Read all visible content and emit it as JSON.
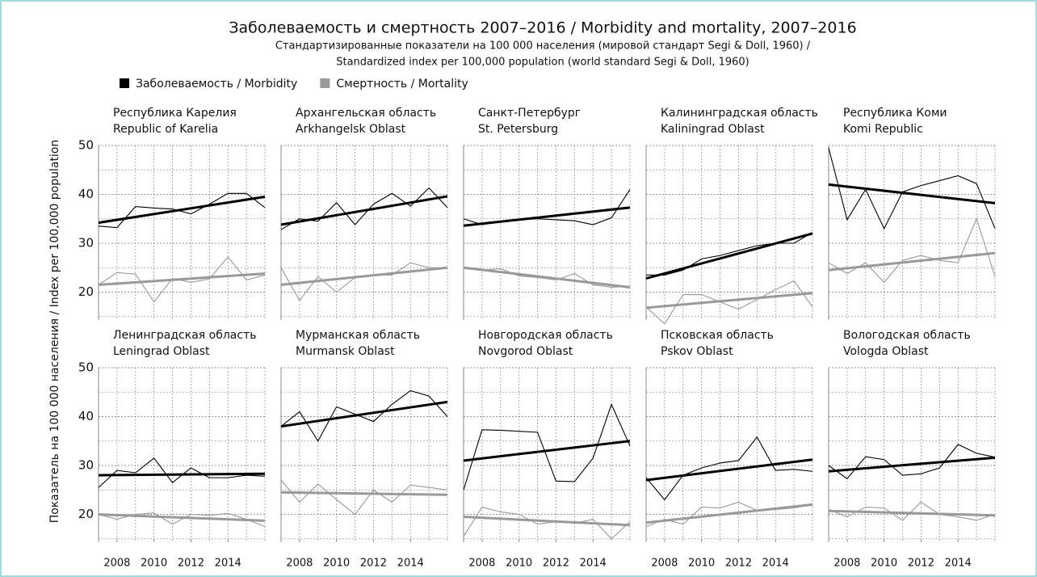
{
  "chart_data": {
    "type": "line",
    "title": "Заболеваемость и смертность 2007–2016 / Morbidity and mortality, 2007–2016",
    "subtitle": [
      "Стандартизированные показатели на 100 000 населения (мировой стандарт Segi & Doll, 1960) /",
      "Standardized index per 100,000 population (world standard Segi & Doll, 1960)"
    ],
    "ylabel": "Показатель на 100 000 населения / Index per 100,000 population",
    "series": [
      {
        "name": "Заболеваемость / Morbidity",
        "color": "#000000"
      },
      {
        "name": "Смертность / Mortality",
        "color": "#999999"
      }
    ],
    "x": [
      2007,
      2008,
      2009,
      2010,
      2011,
      2012,
      2013,
      2014,
      2015,
      2016
    ],
    "xlim": [
      2007,
      2016
    ],
    "xticks": [
      2008,
      2010,
      2012,
      2014
    ],
    "ylim": [
      15,
      50
    ],
    "yticks": [
      20,
      30,
      40,
      50
    ],
    "grid": true,
    "panels": [
      {
        "title": [
          "Республика Карелия",
          "Republic of Karelia"
        ],
        "series": [
          {
            "values": [
              33.5,
              33.2,
              37.5,
              37.2,
              37,
              36,
              38,
              40.2,
              40.2,
              37.3
            ],
            "trend": [
              34.2,
              39.5
            ]
          },
          {
            "values": [
              21.5,
              24,
              23.7,
              18,
              22.8,
              22,
              22.7,
              27.2,
              22.5,
              23.5
            ],
            "trend": [
              21.5,
              23.8
            ]
          }
        ]
      },
      {
        "title": [
          "Архангельская область",
          "Arkhangelsk Oblast"
        ],
        "series": [
          {
            "values": [
              32.8,
              35,
              34.5,
              38.3,
              33.8,
              38,
              40.2,
              37.6,
              41.3,
              37.3
            ],
            "trend": [
              33.8,
              39.6
            ]
          },
          {
            "values": [
              25,
              18.3,
              23.2,
              20,
              23,
              23.5,
              23.5,
              26,
              25,
              25
            ],
            "trend": [
              21.5,
              25
            ]
          }
        ]
      },
      {
        "title": [
          "Санкт-Петербург",
          "St. Petersburg"
        ],
        "series": [
          {
            "values": [
              35,
              33.8,
              34.5,
              34.8,
              35,
              34.8,
              34.6,
              33.8,
              35.2,
              41
            ],
            "trend": [
              33.6,
              37.3
            ]
          },
          {
            "values": [
              25,
              24.5,
              24.8,
              23.3,
              23,
              22.5,
              23.8,
              21.5,
              21,
              21.2
            ],
            "trend": [
              25,
              21
            ]
          }
        ]
      },
      {
        "title": [
          "Калининградская область",
          "Kaliningrad Oblast"
        ],
        "series": [
          {
            "values": [
              23.5,
              23.5,
              24.5,
              26.8,
              27.5,
              28.5,
              29.5,
              30,
              30,
              32.2
            ],
            "trend": [
              22.8,
              32
            ]
          },
          {
            "values": [
              17,
              13.5,
              19.5,
              19.5,
              18,
              16.5,
              18.5,
              20.5,
              22.3,
              17
            ],
            "trend": [
              16.8,
              19.8
            ]
          }
        ]
      },
      {
        "title": [
          "Республика Коми",
          "Komi Republic"
        ],
        "series": [
          {
            "values": [
              49.5,
              34.8,
              41,
              33,
              40.5,
              41.8,
              42.8,
              43.8,
              42.2,
              33
            ],
            "trend": [
              42,
              38.2
            ]
          },
          {
            "values": [
              26,
              23.8,
              26,
              22,
              26.5,
              27.5,
              26.5,
              26,
              35,
              23.2
            ],
            "trend": [
              24.5,
              28
            ]
          }
        ]
      },
      {
        "title": [
          "Ленинградская область",
          "Leningrad Oblast"
        ],
        "series": [
          {
            "values": [
              25.5,
              29,
              28.5,
              31.5,
              26.5,
              29.5,
              27.5,
              27.5,
              28,
              27.8
            ],
            "trend": [
              28,
              28.3
            ]
          },
          {
            "values": [
              20,
              19,
              20,
              20.3,
              18,
              20,
              19.8,
              20.2,
              19,
              17.5
            ],
            "trend": [
              20,
              18.7
            ]
          }
        ]
      },
      {
        "title": [
          "Мурманская область",
          "Murmansk Oblast"
        ],
        "series": [
          {
            "values": [
              38,
              41,
              35,
              42,
              40.5,
              39,
              42.5,
              45.3,
              44.2,
              40
            ],
            "trend": [
              38,
              43
            ]
          },
          {
            "values": [
              27,
              22.5,
              26.2,
              23,
              20,
              25,
              22.5,
              26,
              25.5,
              25
            ],
            "trend": [
              24.5,
              24
            ]
          }
        ]
      },
      {
        "title": [
          "Новгородская область",
          "Novgorod Oblast"
        ],
        "series": [
          {
            "values": [
              25,
              37.3,
              37.2,
              37,
              36.8,
              26.8,
              26.7,
              31.5,
              42.5,
              34
            ],
            "trend": [
              31,
              35
            ]
          },
          {
            "values": [
              15.5,
              21.5,
              20.5,
              20,
              18,
              18.5,
              18.2,
              19,
              15,
              18.5
            ],
            "trend": [
              19.5,
              17.8
            ]
          }
        ]
      },
      {
        "title": [
          "Псковская область",
          "Pskov Oblast"
        ],
        "series": [
          {
            "values": [
              27.5,
              23,
              28,
              29.5,
              30.5,
              31,
              35.8,
              29,
              29.2,
              28.8
            ],
            "trend": [
              27,
              31.2
            ]
          },
          {
            "values": [
              17.5,
              19,
              18,
              21.5,
              21.3,
              22.5,
              20.8,
              21,
              21.3,
              22
            ],
            "trend": [
              18.3,
              22
            ]
          }
        ]
      },
      {
        "title": [
          "Вологодская область",
          "Vologda Oblast"
        ],
        "series": [
          {
            "values": [
              30,
              27.3,
              31.8,
              31.2,
              28,
              28.3,
              29.5,
              34.3,
              32.5,
              31.7
            ],
            "trend": [
              28.8,
              31.6
            ]
          },
          {
            "values": [
              21,
              19.5,
              21.5,
              21.3,
              18.8,
              22.5,
              20,
              19.5,
              18.8,
              20
            ],
            "trend": [
              20.7,
              19.8
            ]
          }
        ]
      }
    ]
  }
}
